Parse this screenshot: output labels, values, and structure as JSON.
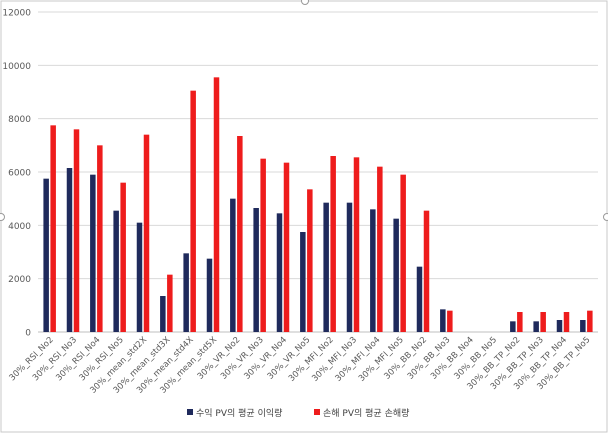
{
  "chart_data": {
    "type": "bar",
    "categories": [
      "30%_RSI_No2",
      "30%_RSI_No3",
      "30%_RSI_No4",
      "30%_RSI_No5",
      "30%_mean_std2X",
      "30%_mean_std3X",
      "30%_mean_std4X",
      "30%_mean_std5X",
      "30%_VR_No2",
      "30%_VR_No3",
      "30%_VR_No4",
      "30%_VR_No5",
      "30%_MFI_No2",
      "30%_MFI_No3",
      "30%_MFI_No4",
      "30%_MFI_No5",
      "30%_BB_No2",
      "30%_BB_No3",
      "30%_BB_No4",
      "30%_BB_No5",
      "30%_BB_TP_No2",
      "30%_BB_TP_No3",
      "30%_BB_TP_No4",
      "30%_BB_TP_No5"
    ],
    "series": [
      {
        "name": "수익 PV의 평균 이익량",
        "color": "#1f2a5c",
        "values": [
          5750,
          6150,
          5900,
          4550,
          4100,
          1350,
          2950,
          2750,
          5000,
          4650,
          4450,
          3750,
          4850,
          4850,
          4600,
          4250,
          2450,
          850,
          0,
          0,
          400,
          400,
          450,
          450
        ]
      },
      {
        "name": "손해 PV의 평균 손해량",
        "color": "#ee1c1c",
        "values": [
          7750,
          7600,
          7000,
          5600,
          7400,
          2150,
          9050,
          9550,
          7350,
          6500,
          6350,
          5350,
          6600,
          6550,
          6200,
          5900,
          4550,
          800,
          0,
          0,
          750,
          750,
          750,
          800
        ]
      }
    ],
    "ylim": [
      0,
      12000
    ],
    "yticks": [
      0,
      2000,
      4000,
      6000,
      8000,
      10000,
      12000
    ],
    "grid": true,
    "legend": "bottom"
  }
}
